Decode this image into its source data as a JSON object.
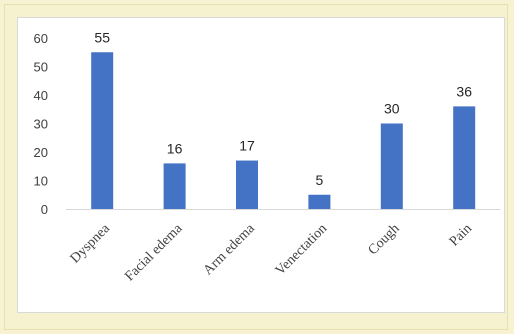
{
  "chart_data": {
    "type": "bar",
    "categories": [
      "Dyspnea",
      "Facial edema",
      "Arm edema",
      "Venectation",
      "Cough",
      "Pain"
    ],
    "values": [
      55,
      16,
      17,
      5,
      30,
      36
    ],
    "data_labels": [
      "55",
      "16",
      "17",
      "5",
      "30",
      "36"
    ],
    "yticks": [
      "0",
      "10",
      "20",
      "30",
      "40",
      "50",
      "60"
    ],
    "title": "",
    "xlabel": "",
    "ylabel": "",
    "ylim": [
      0,
      60
    ],
    "grid": false,
    "bar_color": "#4472c4"
  }
}
